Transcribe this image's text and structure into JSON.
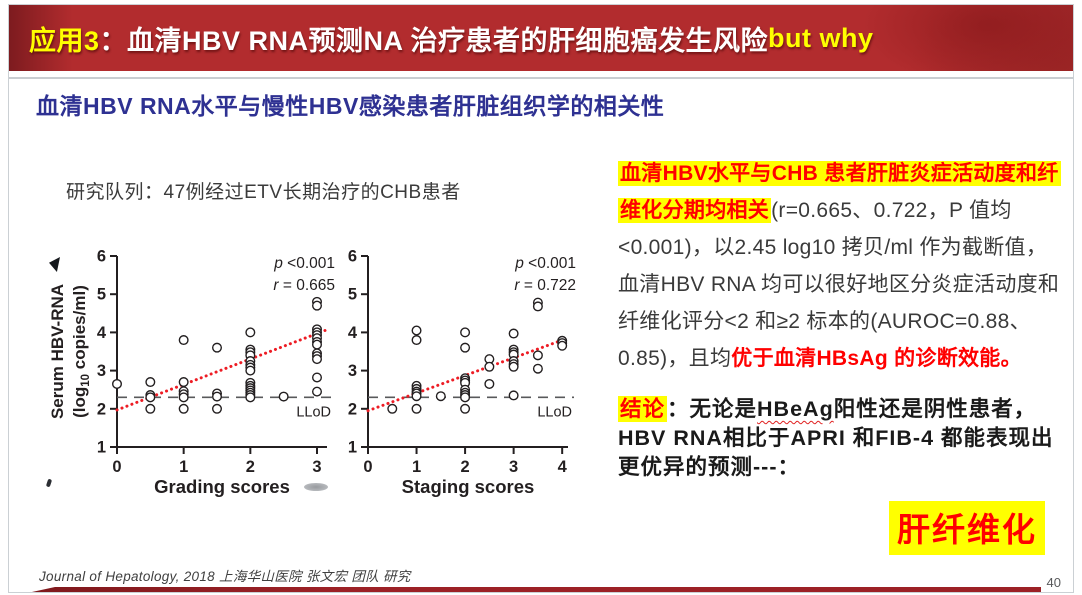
{
  "slide": {
    "header": {
      "prefix": "应用3",
      "title": "：血清HBV RNA预测NA 治疗患者的肝细胞癌发生风险",
      "suffix": " but why"
    },
    "subtitle": "血清HBV RNA水平与慢性HBV感染患者肝脏组织学的相关性",
    "cohort_note": "研究队列：47例经过ETV长期治疗的CHB患者",
    "findings": {
      "highlight": "血清HBV水平与CHB 患者肝脏炎症活动度和纤维化分期均相关",
      "body": "(r=0.665、0.722，P 值均 <0.001)，以2.45 log10 拷贝/ml 作为截断值，血清HBV RNA 均可以很好地区分炎症活动度和纤维化评分<2 和≥2 标本的(AUROC=0.88、0.85)，且均",
      "emphasis": "优于血清HBsAg 的诊断效能。"
    },
    "conclusion": {
      "label": "结论",
      "body_pre": "：无论是",
      "body_wavy": "HBeAg",
      "body_post": "阳性还是阴性患者，HBV RNA相比于APRI 和FIB-4 都能表现出更优异的预测---：",
      "keyword": "肝纤维化"
    },
    "citation": "Journal of Hepatology, 2018 上海华山医院 张文宏 团队 研究",
    "page_number": "40"
  },
  "colors": {
    "header-red": "#b22c2e",
    "header-red-dark": "#7d1b1f",
    "title-yellow": "#ffff00",
    "subtitle-blue": "#2e3192",
    "highlight-yellow": "#ffff00",
    "emphasis-red": "#ff0000",
    "bar-red": "#9c2126"
  },
  "chart_data": [
    {
      "type": "scatter",
      "title": "",
      "xlabel": "Grading scores",
      "ylabel": {
        "line1": "Serum HBV-RNA",
        "line2_pre": "(log",
        "line2_sub": "10",
        "line2_post": " copies/ml)"
      },
      "xlim": [
        0,
        3.15
      ],
      "ylim": [
        1,
        6
      ],
      "xticks": [
        0,
        1,
        2,
        3
      ],
      "yticks": [
        1,
        2,
        3,
        4,
        5,
        6
      ],
      "grid": false,
      "annotation": {
        "line1_italic": "p",
        "line1_rest": " <0.001",
        "line2_italic": "r",
        "line2_rest": " = 0.665"
      },
      "lloD": {
        "y": 2.3,
        "label": "LLoD"
      },
      "trend": {
        "x1": 0,
        "y1": 1.97,
        "x2": 3.12,
        "y2": 4.05
      },
      "colors": {
        "point": "#231f20",
        "trend": "#ed1c24",
        "llod": "#58595b",
        "axis": "#231f20"
      },
      "points": [
        [
          0,
          2.65
        ],
        [
          0.5,
          2.7
        ],
        [
          0.5,
          2.36
        ],
        [
          0.5,
          2.3
        ],
        [
          0.5,
          2.0
        ],
        [
          1,
          3.8
        ],
        [
          1,
          2.7
        ],
        [
          1,
          2.46
        ],
        [
          1,
          2.38
        ],
        [
          1,
          2.3
        ],
        [
          1,
          2.0
        ],
        [
          1.5,
          3.6
        ],
        [
          1.5,
          2.4
        ],
        [
          1.5,
          2.32
        ],
        [
          1.5,
          2.0
        ],
        [
          2,
          4.0
        ],
        [
          2,
          3.55
        ],
        [
          2,
          3.48
        ],
        [
          2,
          3.4
        ],
        [
          2,
          3.25
        ],
        [
          2,
          3.15
        ],
        [
          2,
          3.08
        ],
        [
          2,
          3.0
        ],
        [
          2,
          2.68
        ],
        [
          2,
          2.6
        ],
        [
          2,
          2.54
        ],
        [
          2,
          2.48
        ],
        [
          2,
          2.42
        ],
        [
          2,
          2.36
        ],
        [
          2,
          2.3
        ],
        [
          2.5,
          2.32
        ],
        [
          3,
          4.8
        ],
        [
          3,
          4.7
        ],
        [
          3,
          4.08
        ],
        [
          3,
          4.0
        ],
        [
          3,
          3.93
        ],
        [
          3,
          3.85
        ],
        [
          3,
          3.75
        ],
        [
          3,
          3.68
        ],
        [
          3,
          3.45
        ],
        [
          3,
          3.38
        ],
        [
          3,
          3.3
        ],
        [
          3,
          2.82
        ],
        [
          3,
          2.45
        ]
      ]
    },
    {
      "type": "scatter",
      "title": "",
      "xlabel": "Staging scores",
      "ylabel": null,
      "xlim": [
        0,
        4.12
      ],
      "ylim": [
        1,
        6
      ],
      "xticks": [
        0,
        1,
        2,
        3,
        4
      ],
      "yticks": [
        1,
        2,
        3,
        4,
        5,
        6
      ],
      "grid": false,
      "annotation": {
        "line1_italic": "p",
        "line1_rest": " <0.001",
        "line2_italic": "r",
        "line2_rest": " = 0.722"
      },
      "lloD": {
        "y": 2.3,
        "label": "LLoD"
      },
      "trend": {
        "x1": 0,
        "y1": 1.95,
        "x2": 4.05,
        "y2": 3.82
      },
      "colors": {
        "point": "#231f20",
        "trend": "#ed1c24",
        "llod": "#58595b",
        "axis": "#231f20"
      },
      "points": [
        [
          0.5,
          2.0
        ],
        [
          1,
          4.05
        ],
        [
          1,
          3.8
        ],
        [
          1,
          2.6
        ],
        [
          1,
          2.52
        ],
        [
          1,
          2.45
        ],
        [
          1,
          2.4
        ],
        [
          1,
          2.33
        ],
        [
          1,
          2.0
        ],
        [
          1.5,
          2.33
        ],
        [
          2,
          4.0
        ],
        [
          2,
          3.6
        ],
        [
          2,
          2.8
        ],
        [
          2,
          2.74
        ],
        [
          2,
          2.68
        ],
        [
          2,
          2.5
        ],
        [
          2,
          2.42
        ],
        [
          2,
          2.36
        ],
        [
          2,
          2.3
        ],
        [
          2,
          2.0
        ],
        [
          2.5,
          3.3
        ],
        [
          2.5,
          3.1
        ],
        [
          2.5,
          2.65
        ],
        [
          3,
          3.97
        ],
        [
          3,
          3.55
        ],
        [
          3,
          3.48
        ],
        [
          3,
          3.42
        ],
        [
          3,
          3.25
        ],
        [
          3,
          3.17
        ],
        [
          3,
          3.1
        ],
        [
          3,
          2.35
        ],
        [
          3.5,
          4.78
        ],
        [
          3.5,
          4.68
        ],
        [
          3.5,
          3.4
        ],
        [
          3.5,
          3.05
        ],
        [
          4,
          3.78
        ],
        [
          4,
          3.72
        ],
        [
          4,
          3.65
        ]
      ]
    }
  ]
}
